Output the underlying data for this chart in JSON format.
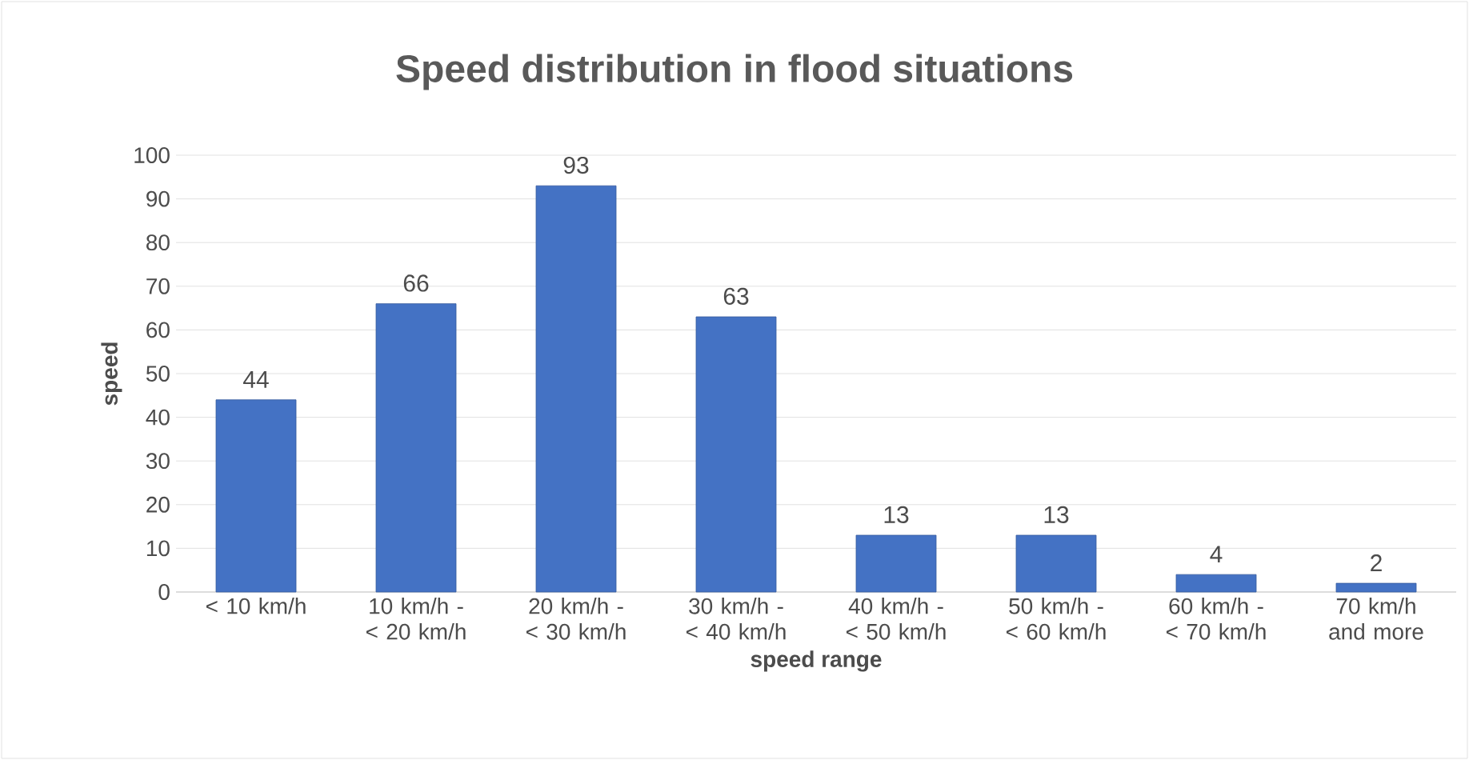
{
  "chart_data": {
    "type": "bar",
    "title": "Speed distribution in flood situations",
    "xlabel": "speed range",
    "ylabel": "speed",
    "categories": [
      "< 10 km/h",
      "10 km/h - < 20 km/h",
      "20 km/h - < 30 km/h",
      "30 km/h - < 40 km/h",
      "40 km/h - < 50 km/h",
      "50 km/h - < 60 km/h",
      "60 km/h - < 70 km/h",
      "70 km/h and more"
    ],
    "values": [
      44,
      66,
      93,
      63,
      13,
      13,
      4,
      2
    ],
    "color": "#4472c4",
    "ylim": [
      0,
      100
    ],
    "yticks": [
      0,
      10,
      20,
      30,
      40,
      50,
      60,
      70,
      80,
      90,
      100
    ],
    "grid": "y",
    "data_labels": true
  }
}
